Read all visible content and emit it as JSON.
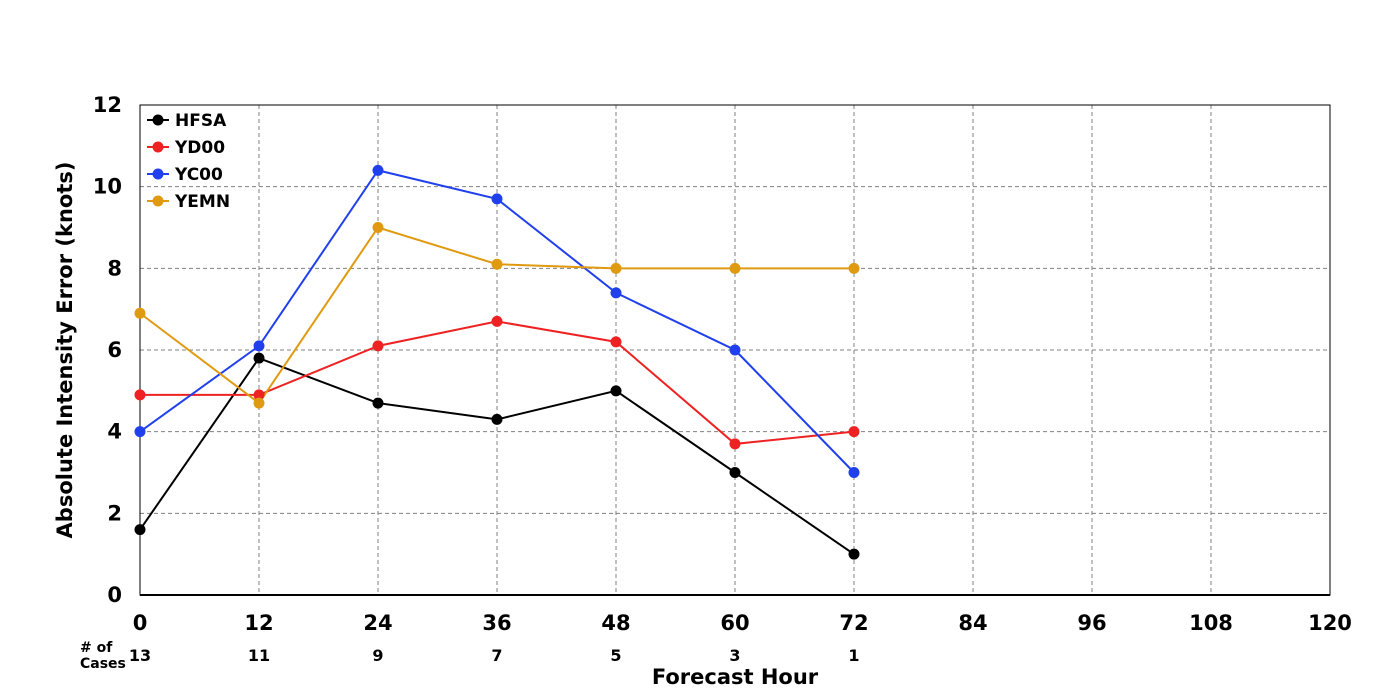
{
  "chart_data": {
    "type": "line",
    "title": "",
    "xlabel": "Forecast Hour",
    "ylabel": "Absolute Intensity Error (knots)",
    "x_ticks": [
      0,
      12,
      24,
      36,
      48,
      60,
      72,
      84,
      96,
      108,
      120
    ],
    "y_ticks": [
      0,
      2,
      4,
      6,
      8,
      10,
      12
    ],
    "xlim": [
      0,
      120
    ],
    "ylim": [
      0,
      12
    ],
    "grid": true,
    "legend_position": "top-left",
    "cases_label": "# of\nCases",
    "cases": [
      {
        "x": 0,
        "label": "13"
      },
      {
        "x": 12,
        "label": "11"
      },
      {
        "x": 24,
        "label": "9"
      },
      {
        "x": 36,
        "label": "7"
      },
      {
        "x": 48,
        "label": "5"
      },
      {
        "x": 60,
        "label": "3"
      },
      {
        "x": 72,
        "label": "1"
      }
    ],
    "series": [
      {
        "name": "HFSA",
        "color": "#000000",
        "x": [
          0,
          12,
          24,
          36,
          48,
          60,
          72
        ],
        "values": [
          1.6,
          5.8,
          4.7,
          4.3,
          5.0,
          3.0,
          1.0
        ]
      },
      {
        "name": "YD00",
        "color": "#ee2222",
        "x": [
          0,
          12,
          24,
          36,
          48,
          60,
          72
        ],
        "values": [
          4.9,
          4.9,
          6.1,
          6.7,
          6.2,
          3.7,
          4.0
        ]
      },
      {
        "name": "YC00",
        "color": "#2040ee",
        "x": [
          0,
          12,
          24,
          36,
          48,
          60,
          72
        ],
        "values": [
          4.0,
          6.1,
          10.4,
          9.7,
          7.4,
          6.0,
          3.0
        ]
      },
      {
        "name": "YEMN",
        "color": "#e09a10",
        "x": [
          0,
          12,
          24,
          36,
          48,
          60,
          72
        ],
        "values": [
          6.9,
          4.7,
          9.0,
          8.1,
          8.0,
          8.0,
          8.0
        ]
      }
    ]
  }
}
